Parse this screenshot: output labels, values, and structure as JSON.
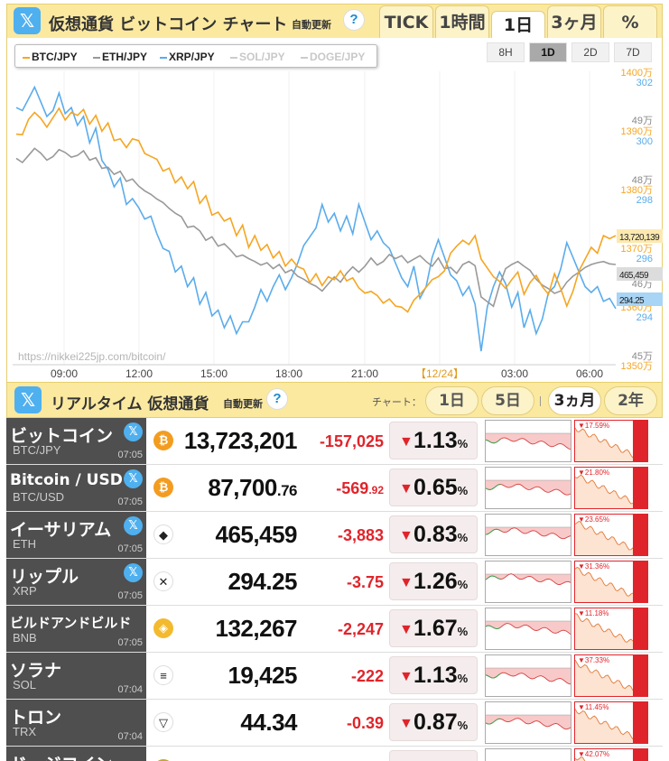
{
  "header": {
    "x_label": "𝕏",
    "title": "仮想通貨 ビットコイン チャート",
    "auto_update": "自動更新",
    "help": "?",
    "tabs": [
      "TICK",
      "1時間",
      "1日",
      "3ヶ月",
      "%"
    ],
    "active_tab": "1日"
  },
  "legend": [
    {
      "name": "BTC/JPY",
      "color": "#f5a623",
      "on": true
    },
    {
      "name": "ETH/JPY",
      "color": "#999999",
      "on": true
    },
    {
      "name": "XRP/JPY",
      "color": "#5aacec",
      "on": true
    },
    {
      "name": "SOL/JPY",
      "color": "#cccccc",
      "on": false
    },
    {
      "name": "DOGE/JPY",
      "color": "#cccccc",
      "on": false
    }
  ],
  "timeframes": [
    "8H",
    "1D",
    "2D",
    "7D"
  ],
  "active_timeframe": "1D",
  "chart_data": {
    "type": "line",
    "x_labels": [
      "09:00",
      "12:00",
      "15:00",
      "18:00",
      "21:00",
      "【12/24】",
      "03:00",
      "06:00"
    ],
    "axis_btc": [
      "1400万",
      "1390万",
      "1380万",
      "1370万",
      "1360万",
      "1350万"
    ],
    "axis_eth": [
      "49万",
      "48万",
      "46万",
      "45万"
    ],
    "axis_xrp": [
      "302",
      "300",
      "298",
      "296",
      "294"
    ],
    "current": {
      "btc": "13,720,139",
      "eth": "465,459",
      "xrp": "294.25"
    },
    "watermark": "https://nikkei225jp.com/bitcoin/",
    "series": [
      {
        "name": "BTC/JPY",
        "color": "#f5a623",
        "values": [
          13893,
          13892,
          13918,
          13930,
          13920,
          13905,
          13921,
          13937,
          13917,
          13930,
          13925,
          13935,
          13910,
          13925,
          13898,
          13912,
          13882,
          13885,
          13870,
          13885,
          13882,
          13860,
          13855,
          13850,
          13830,
          13835,
          13810,
          13820,
          13800,
          13812,
          13775,
          13788,
          13755,
          13760,
          13745,
          13750,
          13720,
          13738,
          13700,
          13720,
          13695,
          13705,
          13682,
          13693,
          13668,
          13680,
          13667,
          13663,
          13640,
          13655,
          13635,
          13650,
          13645,
          13660,
          13643,
          13648,
          13631,
          13622,
          13625,
          13618,
          13605,
          13612,
          13600,
          13598,
          13590,
          13610,
          13620,
          13632,
          13645,
          13650,
          13660,
          13690,
          13702,
          13712,
          13705,
          13720,
          13680,
          13665,
          13650,
          13642,
          13630,
          13645,
          13658,
          13620,
          13640,
          13652,
          13633,
          13620,
          13655,
          13630,
          13600,
          13625,
          13660,
          13680,
          13700,
          13690,
          13720,
          13715,
          13720
        ]
      },
      {
        "name": "ETH/JPY",
        "color": "#999999",
        "values": [
          483.5,
          482.8,
          484.0,
          485.2,
          484.4,
          483.2,
          483.8,
          485.0,
          484.5,
          483.7,
          484.0,
          484.8,
          483.2,
          483.6,
          481.8,
          482.0,
          480.8,
          481.3,
          479.6,
          480.0,
          478.8,
          478.0,
          477.4,
          476.6,
          476.0,
          475.0,
          474.2,
          473.6,
          471.8,
          472.0,
          471.2,
          469.6,
          470.2,
          468.6,
          469.0,
          468.0,
          466.8,
          467.1,
          466.5,
          466.0,
          465.4,
          465.8,
          464.8,
          465.5,
          464.1,
          464.6,
          463.5,
          463.0,
          462.3,
          461.8,
          461.0,
          462.2,
          463.4,
          462.5,
          464.0,
          465.1,
          464.2,
          465.2,
          466.6,
          465.4,
          466.0,
          467.2,
          466.5,
          467.0,
          465.8,
          466.4,
          467.0,
          466.0,
          465.2,
          466.6,
          464.8,
          465.0,
          464.0,
          465.5,
          466.0,
          465.3,
          460.0,
          459.2,
          458.4,
          462.0,
          464.8,
          465.5,
          466.0,
          465.2,
          464.5,
          463.0,
          462.0,
          461.4,
          460.6,
          461.0,
          462.5,
          463.5,
          464.2,
          465.0,
          465.5,
          465.8,
          466.0,
          465.6,
          465.5
        ]
      },
      {
        "name": "XRP/JPY",
        "color": "#5aacec",
        "values": [
          301.1,
          301.0,
          301.4,
          301.8,
          301.3,
          300.8,
          301.0,
          301.6,
          300.9,
          301.1,
          300.5,
          300.8,
          299.9,
          300.4,
          299.3,
          299.0,
          298.4,
          298.7,
          297.8,
          298.0,
          297.7,
          297.3,
          297.4,
          296.8,
          296.3,
          296.2,
          295.5,
          295.7,
          295.0,
          295.3,
          294.4,
          294.8,
          294.0,
          294.2,
          293.6,
          294.0,
          293.4,
          293.8,
          293.8,
          294.3,
          294.9,
          294.5,
          295.0,
          295.4,
          294.9,
          295.3,
          295.8,
          296.4,
          296.7,
          297.0,
          297.8,
          297.2,
          297.5,
          296.9,
          297.4,
          296.8,
          297.8,
          297.2,
          296.6,
          296.9,
          296.5,
          296.3,
          295.8,
          295.3,
          295.0,
          295.7,
          294.6,
          295.0,
          296.0,
          296.6,
          296.0,
          295.4,
          295.2,
          294.7,
          295.0,
          294.4,
          292.8,
          294.3,
          295.0,
          295.5,
          295.1,
          294.3,
          294.8,
          293.6,
          294.2,
          293.4,
          293.9,
          294.8,
          295.0,
          295.6,
          296.5,
          296.0,
          295.5,
          295.0,
          294.8,
          295.0,
          294.5,
          294.6,
          294.25
        ]
      }
    ]
  },
  "realtime": {
    "x_label": "𝕏",
    "title": "リアルタイム 仮想通貨",
    "auto_update": "自動更新",
    "help": "?",
    "chart_label": "チャート：",
    "ranges": [
      "1日",
      "5日",
      "3ヵ月",
      "2年"
    ],
    "active_range": "3ヵ月"
  },
  "rows": [
    {
      "name": "ビットコイン",
      "ticker": "BTC/JPY",
      "time": "07:05",
      "x": true,
      "icon": "₿",
      "icon_color": "#f39c1f",
      "icon_name": "bitcoin-icon",
      "price": "13,723,201",
      "price_dec": "",
      "change": "-157,025",
      "change_dec": "",
      "pct": "1.13",
      "spark2_pct": "▼17.59%",
      "name_size": ""
    },
    {
      "name": "Bitcoin / USD",
      "ticker": "BTC/USD",
      "time": "07:05",
      "x": true,
      "icon": "₿",
      "icon_color": "#f39c1f",
      "icon_name": "bitcoin-icon",
      "price": "87,700",
      "price_dec": ".76",
      "change": "-569",
      "change_dec": ".92",
      "pct": "0.65",
      "spark2_pct": "▼21.80%",
      "name_size": "mid"
    },
    {
      "name": "イーサリアム",
      "ticker": "ETH",
      "time": "07:05",
      "x": true,
      "icon": "◆",
      "icon_color": "#ffffff",
      "icon_name": "ethereum-icon",
      "price": "465,459",
      "price_dec": "",
      "change": "-3,883",
      "change_dec": "",
      "pct": "0.83",
      "spark2_pct": "▼23.65%",
      "name_size": ""
    },
    {
      "name": "リップル",
      "ticker": "XRP",
      "time": "07:05",
      "x": true,
      "icon": "✕",
      "icon_color": "#ffffff",
      "icon_name": "xrp-icon",
      "price": "294.25",
      "price_dec": "",
      "change": "-3.75",
      "change_dec": "",
      "pct": "1.26",
      "spark2_pct": "▼31.36%",
      "name_size": ""
    },
    {
      "name": "ビルドアンドビルド",
      "ticker": "BNB",
      "time": "07:05",
      "x": false,
      "icon": "◈",
      "icon_color": "#f3ba2f",
      "icon_name": "bnb-icon",
      "price": "132,267",
      "price_dec": "",
      "change": "-2,247",
      "change_dec": "",
      "pct": "1.67",
      "spark2_pct": "▼11.18%",
      "name_size": "small"
    },
    {
      "name": "ソラナ",
      "ticker": "SOL",
      "time": "07:04",
      "x": false,
      "icon": "≡",
      "icon_color": "#ffffff",
      "icon_name": "solana-icon",
      "price": "19,425",
      "price_dec": "",
      "change": "-222",
      "change_dec": "",
      "pct": "1.13",
      "spark2_pct": "▼37.33%",
      "name_size": ""
    },
    {
      "name": "トロン",
      "ticker": "TRX",
      "time": "07:04",
      "x": false,
      "icon": "▽",
      "icon_color": "#ffffff",
      "icon_name": "tron-icon",
      "price": "44.34",
      "price_dec": "",
      "change": "-0.39",
      "change_dec": "",
      "pct": "0.87",
      "spark2_pct": "▼11.45%",
      "name_size": ""
    },
    {
      "name": "ドージコイン",
      "ticker": "",
      "time": "",
      "x": false,
      "icon": "Ð",
      "icon_color": "#c2a633",
      "icon_name": "dogecoin-icon",
      "price": "",
      "price_dec": "",
      "change": "",
      "change_dec": "",
      "pct": "",
      "spark2_pct": "▼42.07%",
      "name_size": ""
    }
  ]
}
